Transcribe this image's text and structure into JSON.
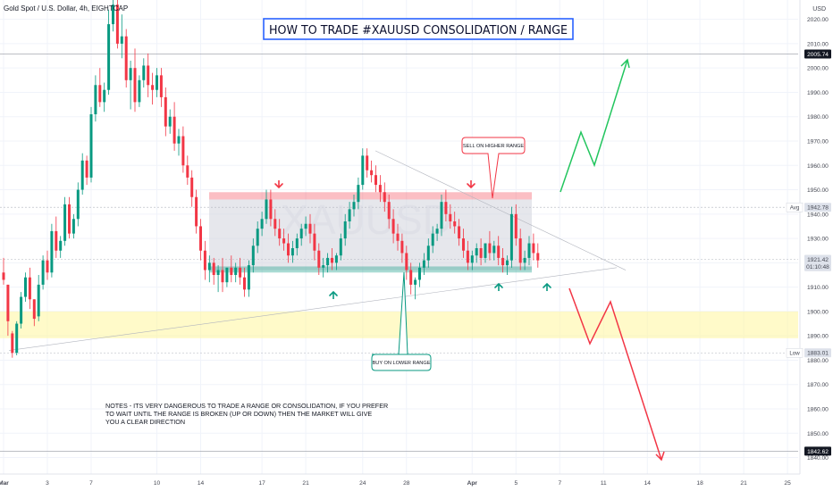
{
  "header": {
    "symbol": "Gold Spot / U.S. Dollar, 4h, EIGHTCAP",
    "currency": "USD",
    "title": "HOW TO TRADE #XAUUSD CONSOLIDATION / RANGE",
    "watermark": "XAUUSD"
  },
  "annotations": {
    "sell": "SELL ON HIGHER RANGE",
    "buy": "BUY ON LOWER RANGE",
    "notes": [
      "NOTES - ITS VERY DANGEROUS TO TRADE A RANGE OR CONSOLIDATION, IF YOU PREFER",
      "TO WAIT UNTIL THE RANGE IS BROKEN (UP OR DOWN) THEN THE MARKET WILL GIVE",
      "YOU A CLEAR DIRECTION"
    ]
  },
  "chart_data": {
    "type": "candlestick",
    "ylim": [
      1838,
      2025
    ],
    "y_ticks": [
      2020,
      2010,
      2000,
      1990,
      1980,
      1970,
      1960,
      1950,
      1940,
      1930,
      1920,
      1910,
      1900,
      1890,
      1880,
      1870,
      1860,
      1850,
      1840
    ],
    "y_tick_labels": [
      "2020.00",
      "2010.00",
      "2000.00",
      "1990.00",
      "1980.00",
      "1970.00",
      "1960.00",
      "1950.00",
      "1940.00",
      "1930.00",
      "1920.00",
      "1910.00",
      "1900.00",
      "1890.00",
      "1880.00",
      "1870.00",
      "1860.00",
      "1850.00",
      "1840.00"
    ],
    "x_ticks": [
      {
        "label": "Mar",
        "bar": 0
      },
      {
        "label": "3",
        "bar": 10
      },
      {
        "label": "7",
        "bar": 20
      },
      {
        "label": "10",
        "bar": 35
      },
      {
        "label": "14",
        "bar": 45
      },
      {
        "label": "17",
        "bar": 59
      },
      {
        "label": "21",
        "bar": 69
      },
      {
        "label": "24",
        "bar": 82
      },
      {
        "label": "28",
        "bar": 92
      },
      {
        "label": "Apr",
        "bar": 107
      },
      {
        "label": "5",
        "bar": 117
      },
      {
        "label": "7",
        "bar": 127
      },
      {
        "label": "11",
        "bar": 137
      },
      {
        "label": "14",
        "bar": 147
      },
      {
        "label": "18",
        "bar": 159
      },
      {
        "label": "21",
        "bar": 169
      },
      {
        "label": "25",
        "bar": 179
      }
    ],
    "price_labels": [
      {
        "text": "2005.74",
        "value": 2005.74,
        "style": "dark"
      },
      {
        "text": "1942.78",
        "value": 1942.78,
        "style": "light",
        "tag": "Avg"
      },
      {
        "text": "1921.42",
        "value": 1921.42,
        "style": "light"
      },
      {
        "text": "01:10:48",
        "value": 1918.4,
        "style": "light"
      },
      {
        "text": "1883.01",
        "value": 1883.01,
        "style": "light",
        "tag": "Low"
      },
      {
        "text": "1842.62",
        "value": 1842.62,
        "style": "dark"
      }
    ],
    "zones": {
      "resistance": [
        1946,
        1949
      ],
      "range": [
        1917,
        1946
      ],
      "support": [
        1916,
        1918.5
      ],
      "demand": [
        1889,
        1900
      ]
    },
    "up_color": "#089981",
    "down_color": "#f23645",
    "candles": [
      [
        1916,
        1922,
        1913,
        1911
      ],
      [
        1911,
        1911,
        1896,
        1890
      ],
      [
        1891,
        1892,
        1883,
        1881
      ],
      [
        1883,
        1896,
        1895,
        1882
      ],
      [
        1895,
        1908,
        1906,
        1893
      ],
      [
        1906,
        1916,
        1914,
        1904
      ],
      [
        1914,
        1918,
        1905,
        1901
      ],
      [
        1905,
        1902,
        1897,
        1894
      ],
      [
        1898,
        1915,
        1911,
        1896
      ],
      [
        1911,
        1923,
        1921,
        1909
      ],
      [
        1921,
        1925,
        1916,
        1913
      ],
      [
        1916,
        1936,
        1933,
        1914
      ],
      [
        1933,
        1939,
        1925,
        1922
      ],
      [
        1925,
        1931,
        1929,
        1922
      ],
      [
        1929,
        1947,
        1944,
        1927
      ],
      [
        1944,
        1947,
        1932,
        1930
      ],
      [
        1932,
        1940,
        1938,
        1930
      ],
      [
        1938,
        1953,
        1950,
        1935
      ],
      [
        1950,
        1965,
        1962,
        1948
      ],
      [
        1962,
        1964,
        1955,
        1952
      ],
      [
        1955,
        1984,
        1981,
        1953
      ],
      [
        1981,
        1997,
        1993,
        1978
      ],
      [
        1993,
        2000,
        1986,
        1984
      ],
      [
        1986,
        1994,
        1991,
        1982
      ],
      [
        1991,
        2024,
        2018,
        1989
      ],
      [
        2018,
        2030,
        2026,
        2015
      ],
      [
        2026,
        2030,
        2010,
        2008
      ],
      [
        2010,
        2022,
        2013,
        2004
      ],
      [
        2013,
        2016,
        1995,
        1992
      ],
      [
        1995,
        2003,
        2000,
        1983
      ],
      [
        2000,
        2008,
        1986,
        1982
      ],
      [
        1986,
        1997,
        1995,
        1984
      ],
      [
        1995,
        2004,
        2001,
        1992
      ],
      [
        2001,
        2006,
        1993,
        1988
      ],
      [
        1993,
        1998,
        1991,
        1985
      ],
      [
        1991,
        2000,
        1997,
        1988
      ],
      [
        1997,
        2000,
        1988,
        1984
      ],
      [
        1988,
        1992,
        1976,
        1972
      ],
      [
        1976,
        1983,
        1980,
        1973
      ],
      [
        1980,
        1986,
        1969,
        1966
      ],
      [
        1969,
        1975,
        1972,
        1964
      ],
      [
        1972,
        1976,
        1960,
        1957
      ],
      [
        1960,
        1964,
        1955,
        1952
      ],
      [
        1955,
        1958,
        1947,
        1943
      ],
      [
        1947,
        1950,
        1935,
        1932
      ],
      [
        1935,
        1938,
        1925,
        1921
      ],
      [
        1925,
        1929,
        1917,
        1913
      ],
      [
        1917,
        1923,
        1920,
        1912
      ],
      [
        1920,
        1922,
        1915,
        1911
      ],
      [
        1915,
        1919,
        1917,
        1908
      ],
      [
        1917,
        1922,
        1912,
        1908
      ],
      [
        1912,
        1915,
        1918,
        1910
      ],
      [
        1918,
        1923,
        1915,
        1912
      ],
      [
        1915,
        1920,
        1918,
        1912
      ],
      [
        1918,
        1922,
        1914,
        1911
      ],
      [
        1914,
        1918,
        1909,
        1906
      ],
      [
        1909,
        1921,
        1919,
        1906
      ],
      [
        1919,
        1930,
        1927,
        1916
      ],
      [
        1927,
        1937,
        1934,
        1924
      ],
      [
        1934,
        1941,
        1938,
        1931
      ],
      [
        1938,
        1950,
        1946,
        1936
      ],
      [
        1946,
        1950,
        1938,
        1935
      ],
      [
        1938,
        1942,
        1934,
        1931
      ],
      [
        1934,
        1938,
        1930,
        1927
      ],
      [
        1930,
        1934,
        1928,
        1925
      ],
      [
        1928,
        1932,
        1923,
        1920
      ],
      [
        1923,
        1929,
        1926,
        1920
      ],
      [
        1926,
        1932,
        1930,
        1923
      ],
      [
        1930,
        1936,
        1934,
        1927
      ],
      [
        1934,
        1939,
        1936,
        1931
      ],
      [
        1936,
        1940,
        1932,
        1928
      ],
      [
        1932,
        1936,
        1925,
        1921
      ],
      [
        1925,
        1928,
        1918,
        1915
      ],
      [
        1918,
        1922,
        1919,
        1914
      ],
      [
        1919,
        1924,
        1922,
        1916
      ],
      [
        1922,
        1926,
        1920,
        1917
      ],
      [
        1920,
        1924,
        1923,
        1917
      ],
      [
        1923,
        1932,
        1930,
        1921
      ],
      [
        1930,
        1940,
        1937,
        1927
      ],
      [
        1937,
        1945,
        1942,
        1934
      ],
      [
        1942,
        1948,
        1945,
        1939
      ],
      [
        1945,
        1955,
        1952,
        1942
      ],
      [
        1952,
        1967,
        1964,
        1950
      ],
      [
        1964,
        1967,
        1958,
        1955
      ],
      [
        1958,
        1962,
        1956,
        1953
      ],
      [
        1956,
        1960,
        1952,
        1949
      ],
      [
        1952,
        1956,
        1949,
        1945
      ],
      [
        1949,
        1953,
        1945,
        1941
      ],
      [
        1945,
        1948,
        1938,
        1934
      ],
      [
        1938,
        1942,
        1932,
        1928
      ],
      [
        1932,
        1936,
        1929,
        1925
      ],
      [
        1929,
        1932,
        1924,
        1920
      ],
      [
        1924,
        1927,
        1917,
        1913
      ],
      [
        1917,
        1920,
        1911,
        1907
      ],
      [
        1911,
        1914,
        1913,
        1905
      ],
      [
        1913,
        1920,
        1918,
        1910
      ],
      [
        1918,
        1924,
        1921,
        1915
      ],
      [
        1921,
        1930,
        1927,
        1918
      ],
      [
        1927,
        1935,
        1932,
        1924
      ],
      [
        1932,
        1936,
        1934,
        1929
      ],
      [
        1934,
        1948,
        1945,
        1931
      ],
      [
        1945,
        1950,
        1940,
        1937
      ],
      [
        1940,
        1944,
        1937,
        1934
      ],
      [
        1937,
        1941,
        1935,
        1932
      ],
      [
        1935,
        1938,
        1930,
        1927
      ],
      [
        1930,
        1934,
        1925,
        1922
      ],
      [
        1925,
        1929,
        1920,
        1917
      ],
      [
        1920,
        1925,
        1923,
        1917
      ],
      [
        1923,
        1928,
        1926,
        1920
      ],
      [
        1926,
        1930,
        1922,
        1919
      ],
      [
        1922,
        1926,
        1928,
        1920
      ],
      [
        1928,
        1933,
        1924,
        1921
      ],
      [
        1924,
        1929,
        1927,
        1921
      ],
      [
        1927,
        1931,
        1922,
        1919
      ],
      [
        1922,
        1926,
        1919,
        1916
      ],
      [
        1919,
        1923,
        1921,
        1915
      ],
      [
        1921,
        1943,
        1940,
        1918
      ],
      [
        1940,
        1944,
        1930,
        1927
      ],
      [
        1930,
        1934,
        1920,
        1917
      ],
      [
        1920,
        1925,
        1922,
        1917
      ],
      [
        1922,
        1931,
        1928,
        1919
      ],
      [
        1928,
        1932,
        1924,
        1921
      ],
      [
        1924,
        1928,
        1921,
        1918
      ]
    ]
  }
}
